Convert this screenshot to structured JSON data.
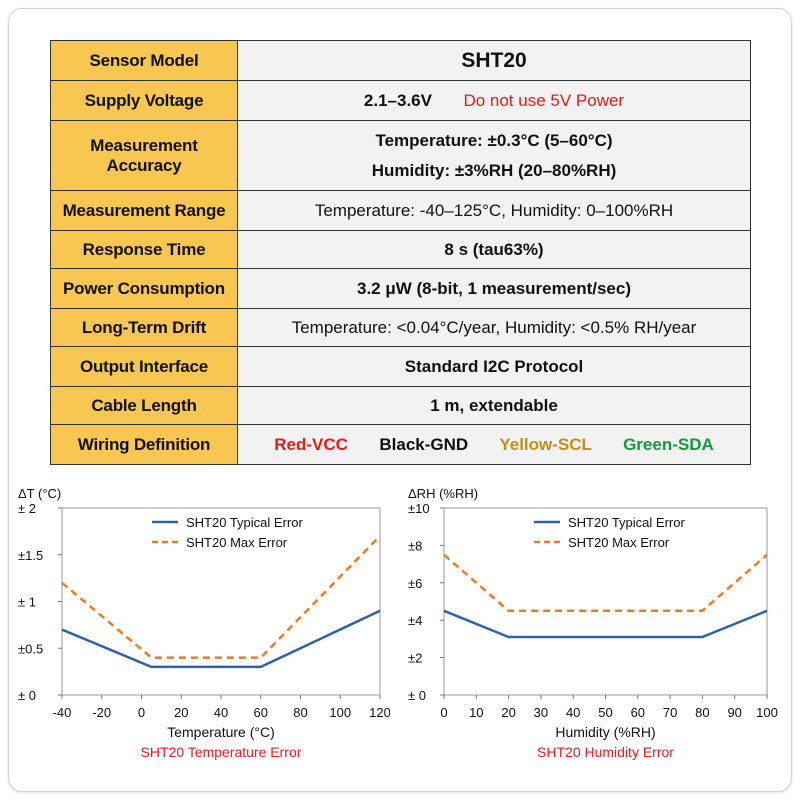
{
  "table": {
    "rows": [
      {
        "label": "Sensor Model",
        "value": "SHT20"
      },
      {
        "label": "Supply Voltage",
        "value": "2.1–3.6V",
        "warning": "Do not use 5V Power"
      },
      {
        "label": "Measurement Accuracy",
        "line1": "Temperature: ±0.3°C (5–60°C)",
        "line2": "Humidity: ±3%RH (20–80%RH)"
      },
      {
        "label": "Measurement Range",
        "value": "Temperature: -40–125°C,  Humidity: 0–100%RH"
      },
      {
        "label": "Response Time",
        "value": "8 s (tau63%)"
      },
      {
        "label": "Power Consumption",
        "value": "3.2 μW (8-bit, 1 measurement/sec)"
      },
      {
        "label": "Long-Term Drift",
        "value": "Temperature: <0.04°C/year, Humidity: <0.5% RH/year"
      },
      {
        "label": "Output Interface",
        "value": "Standard I2C Protocol"
      },
      {
        "label": "Cable Length",
        "value": "1 m, extendable"
      },
      {
        "label": "Wiring Definition",
        "wires": [
          "Red-VCC",
          "Black-GND",
          "Yellow-SCL",
          "Green-SDA"
        ]
      }
    ]
  },
  "colors": {
    "label_bg": "#f8c751",
    "value_bg": "#f2f2f2",
    "typical": "#2e62a8",
    "max": "#ef7a1a",
    "caption": "#e21b1b",
    "wire_red": "#e21b1b",
    "wire_black": "#111111",
    "wire_yellow": "#c58f12",
    "wire_green": "#149a3a"
  },
  "chart_data": [
    {
      "type": "line",
      "title": "SHT20 Temperature Error",
      "xlabel": "Temperature (°C)",
      "ylabel": "ΔT (°C)",
      "xlim": [
        -40,
        120
      ],
      "ylim": [
        0,
        2
      ],
      "xticks": [
        "-40",
        "-20",
        "0",
        "20",
        "40",
        "60",
        "80",
        "100",
        "120"
      ],
      "yticks": [
        "± 0",
        "±0.5",
        "± 1",
        "±1.5",
        "± 2"
      ],
      "legend": "top-right",
      "series": [
        {
          "name": "SHT20 Typical Error",
          "x": [
            -40,
            5,
            60,
            120
          ],
          "y": [
            0.7,
            0.3,
            0.3,
            0.9
          ]
        },
        {
          "name": "SHT20 Max Error",
          "x": [
            -40,
            5,
            60,
            120
          ],
          "y": [
            1.2,
            0.4,
            0.4,
            1.7
          ]
        }
      ]
    },
    {
      "type": "line",
      "title": "SHT20 Humidity Error",
      "xlabel": "Humidity (%RH)",
      "ylabel": "ΔRH (%RH)",
      "xlim": [
        0,
        100
      ],
      "ylim": [
        0,
        10
      ],
      "xticks": [
        "0",
        "10",
        "20",
        "30",
        "40",
        "50",
        "60",
        "70",
        "80",
        "90",
        "100"
      ],
      "yticks": [
        "± 0",
        "±2",
        "±4",
        "±6",
        "±8",
        "±10"
      ],
      "legend": "top-right",
      "series": [
        {
          "name": "SHT20 Typical Error",
          "x": [
            0,
            20,
            80,
            100
          ],
          "y": [
            4.5,
            3.1,
            3.1,
            4.5
          ]
        },
        {
          "name": "SHT20 Max Error",
          "x": [
            0,
            20,
            80,
            100
          ],
          "y": [
            7.5,
            4.5,
            4.5,
            7.5
          ]
        }
      ]
    }
  ]
}
